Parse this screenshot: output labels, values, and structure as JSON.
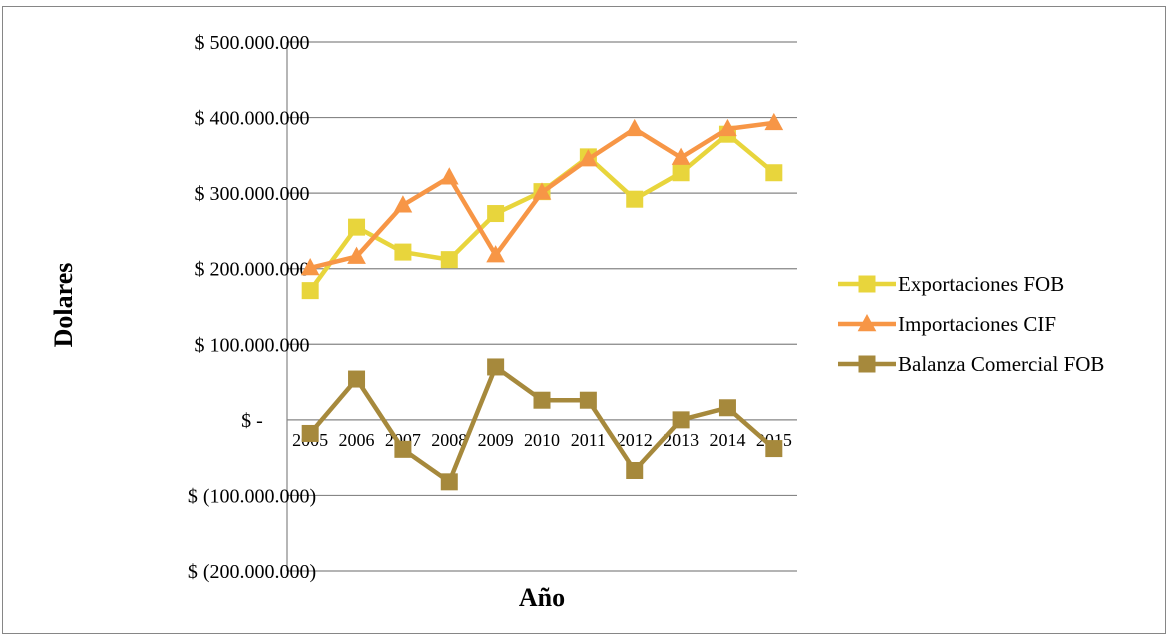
{
  "chart_data": {
    "type": "line",
    "title": "",
    "xlabel": "Año",
    "ylabel": "Dolares",
    "categories": [
      "2005",
      "2006",
      "2007",
      "2008",
      "2009",
      "2010",
      "2011",
      "2012",
      "2013",
      "2014",
      "2015"
    ],
    "ylim": [
      -200000000,
      500000000
    ],
    "y_ticks": [
      {
        "value": 500000000,
        "label": "$ 500.000.000"
      },
      {
        "value": 400000000,
        "label": "$ 400.000.000"
      },
      {
        "value": 300000000,
        "label": "$ 300.000.000"
      },
      {
        "value": 200000000,
        "label": "$ 200.000.000"
      },
      {
        "value": 100000000,
        "label": "$ 100.000.000"
      },
      {
        "value": 0,
        "label": "$ -"
      },
      {
        "value": -100000000,
        "label": "$ (100.000.000)"
      },
      {
        "value": -200000000,
        "label": "$ (200.000.000)"
      }
    ],
    "grid": true,
    "legend_position": "right",
    "series": [
      {
        "name": "Exportaciones FOB",
        "color": "#E8D53C",
        "marker": "square",
        "values": [
          171000000,
          255000000,
          222000000,
          212000000,
          273000000,
          302000000,
          348000000,
          292000000,
          327000000,
          378000000,
          327000000
        ]
      },
      {
        "name": "Importaciones CIF",
        "color": "#F79646",
        "marker": "triangle",
        "values": [
          201000000,
          216000000,
          284000000,
          321000000,
          218000000,
          301000000,
          345000000,
          385000000,
          347000000,
          385000000,
          393000000
        ]
      },
      {
        "name": "Balanza Comercial FOB",
        "color": "#A6893C",
        "marker": "square",
        "values": [
          -18000000,
          54000000,
          -39000000,
          -82000000,
          70000000,
          26000000,
          26000000,
          -67000000,
          0,
          16000000,
          -38000000
        ]
      }
    ]
  }
}
